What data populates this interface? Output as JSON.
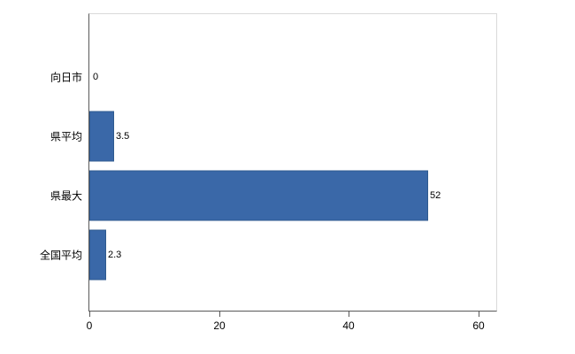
{
  "chart_data": {
    "type": "bar",
    "orientation": "horizontal",
    "title": "",
    "xlabel": "",
    "ylabel": "",
    "categories": [
      "向日市",
      "県平均",
      "県最大",
      "全国平均"
    ],
    "values": [
      0,
      3.5,
      52,
      2.3
    ],
    "value_labels": [
      "0",
      "3.5",
      "52",
      "2.3"
    ],
    "xlim": [
      0,
      62.7
    ],
    "x_ticks": [
      0,
      20,
      40,
      60
    ],
    "x_tick_labels": [
      "0",
      "20",
      "40",
      "60"
    ],
    "grid": false,
    "legend": false,
    "bar_color": "#3a68a8",
    "bar_border_color": "#2f5a8f",
    "axis_color": "#595959",
    "frame_color": "#d9d9d9",
    "text_color": "#000000"
  }
}
